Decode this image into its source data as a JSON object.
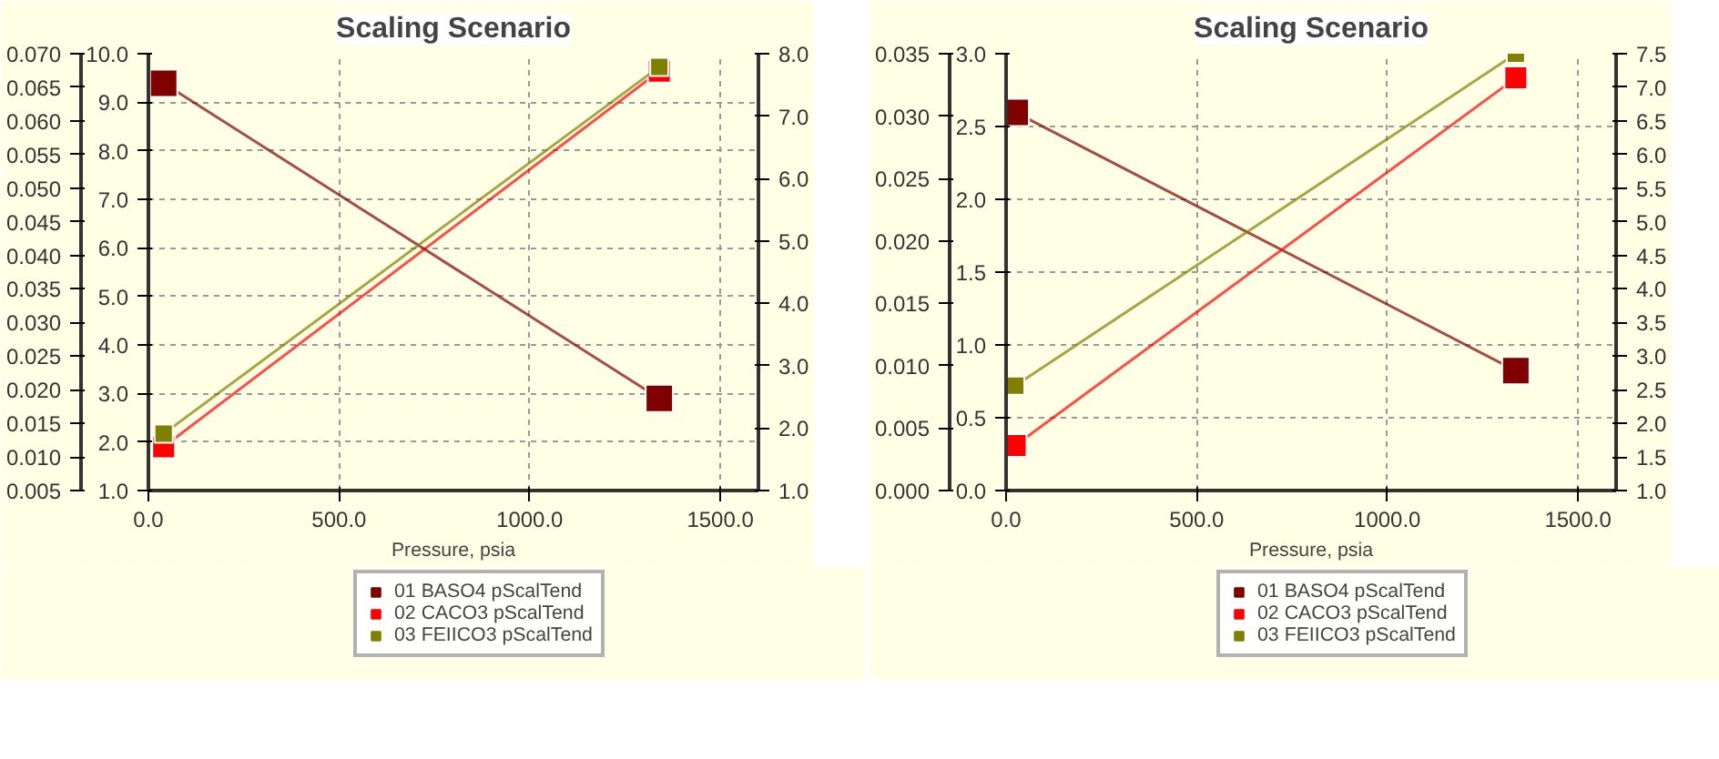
{
  "chart_data": [
    {
      "type": "line",
      "title": "Scaling Scenario",
      "xlabel": "Pressure, psia",
      "legend": "bottom",
      "grid": true,
      "marker": "square",
      "xlim": [
        0,
        1600
      ],
      "xticks": [
        {
          "value": 0,
          "label": "0.0"
        },
        {
          "value": 500,
          "label": "500.0"
        },
        {
          "value": 1000,
          "label": "1000.0"
        },
        {
          "value": 1500,
          "label": "1500.0"
        }
      ],
      "ylim": [
        1,
        10
      ],
      "yticks": [
        {
          "value": 1,
          "label": "1.0"
        },
        {
          "value": 2,
          "label": "2.0"
        },
        {
          "value": 3,
          "label": "3.0"
        },
        {
          "value": 4,
          "label": "4.0"
        },
        {
          "value": 5,
          "label": "5.0"
        },
        {
          "value": 6,
          "label": "6.0"
        },
        {
          "value": 7,
          "label": "7.0"
        },
        {
          "value": 8,
          "label": "8.0"
        },
        {
          "value": 9,
          "label": "9.0"
        },
        {
          "value": 10,
          "label": "10.0"
        }
      ],
      "y2lim": [
        1,
        8
      ],
      "y2ticks": [
        {
          "value": 1,
          "label": "1.0"
        },
        {
          "value": 2,
          "label": "2.0"
        },
        {
          "value": 3,
          "label": "3.0"
        },
        {
          "value": 4,
          "label": "4.0"
        },
        {
          "value": 5,
          "label": "5.0"
        },
        {
          "value": 6,
          "label": "6.0"
        },
        {
          "value": 7,
          "label": "7.0"
        },
        {
          "value": 8,
          "label": "8.0"
        }
      ],
      "y3lim": [
        0.005,
        0.07
      ],
      "y3ticks": [
        0.005,
        {
          "value": 0.01,
          "label": "0.010"
        },
        0.015,
        {
          "value": 0.02,
          "label": "0.020"
        },
        0.025,
        {
          "value": 0.03,
          "label": "0.030"
        },
        0.035,
        {
          "value": 0.04,
          "label": "0.040"
        },
        0.045,
        {
          "value": 0.05,
          "label": "0.050"
        },
        0.055,
        {
          "value": 0.06,
          "label": "0.060"
        },
        0.065,
        {
          "value": 0.07,
          "label": "0.070"
        }
      ],
      "series": [
        {
          "name": "01 BASO4 pScalTend",
          "color": "#800000",
          "axis": "y3",
          "x": [
            40,
            1340
          ],
          "values": [
            0.0656,
            0.0187
          ]
        },
        {
          "name": "02 CACO3 pScalTend",
          "color": "#ff0000",
          "axis": "y2",
          "x": [
            40,
            1340
          ],
          "values": [
            1.7,
            7.72
          ]
        },
        {
          "name": "03 FEIICO3 pScalTend",
          "color": "#808000",
          "axis": "y",
          "x": [
            40,
            1340
          ],
          "values": [
            2.17,
            9.73
          ]
        }
      ]
    },
    {
      "type": "line",
      "title": "Scaling Scenario",
      "xlabel": "Pressure, psia",
      "legend": "bottom",
      "grid": true,
      "marker": "square",
      "xlim": [
        0,
        1600
      ],
      "xticks": [
        {
          "value": 0,
          "label": "0.0"
        },
        {
          "value": 500,
          "label": "500.0"
        },
        {
          "value": 1000,
          "label": "1000.0"
        },
        {
          "value": 1500,
          "label": "1500.0"
        }
      ],
      "ylim": [
        0,
        3
      ],
      "yticks": [
        {
          "value": 0,
          "label": "0.0"
        },
        0.5,
        {
          "value": 1,
          "label": "1.0"
        },
        1.5,
        {
          "value": 2,
          "label": "2.0"
        },
        2.5,
        {
          "value": 3,
          "label": "3.0"
        }
      ],
      "y2lim": [
        1,
        7.5
      ],
      "y2ticks": [
        {
          "value": 1,
          "label": "1.0"
        },
        1.5,
        {
          "value": 2,
          "label": "2.0"
        },
        2.5,
        {
          "value": 3,
          "label": "3.0"
        },
        3.5,
        {
          "value": 4,
          "label": "4.0"
        },
        4.5,
        {
          "value": 5,
          "label": "5.0"
        },
        5.5,
        {
          "value": 6,
          "label": "6.0"
        },
        6.5,
        {
          "value": 7,
          "label": "7.0"
        },
        7.5
      ],
      "y3lim": [
        0,
        0.035
      ],
      "y3ticks": [
        {
          "value": 0,
          "label": "0.000"
        },
        0.005,
        {
          "value": 0.01,
          "label": "0.010"
        },
        0.015,
        {
          "value": 0.02,
          "label": "0.020"
        },
        0.025,
        {
          "value": 0.03,
          "label": "0.030"
        },
        0.035
      ],
      "series": [
        {
          "name": "01 BASO4 pScalTend",
          "color": "#800000",
          "axis": "y3",
          "x": [
            24,
            1337
          ],
          "values": [
            0.0303,
            0.0096
          ]
        },
        {
          "name": "02 CACO3 pScalTend",
          "color": "#ff0000",
          "axis": "y2",
          "x": [
            24,
            1337
          ],
          "values": [
            1.67,
            7.14
          ]
        },
        {
          "name": "03 FEIICO3 pScalTend",
          "color": "#808000",
          "axis": "y",
          "x": [
            24,
            1337
          ],
          "values": [
            0.72,
            3.0
          ]
        }
      ]
    }
  ]
}
